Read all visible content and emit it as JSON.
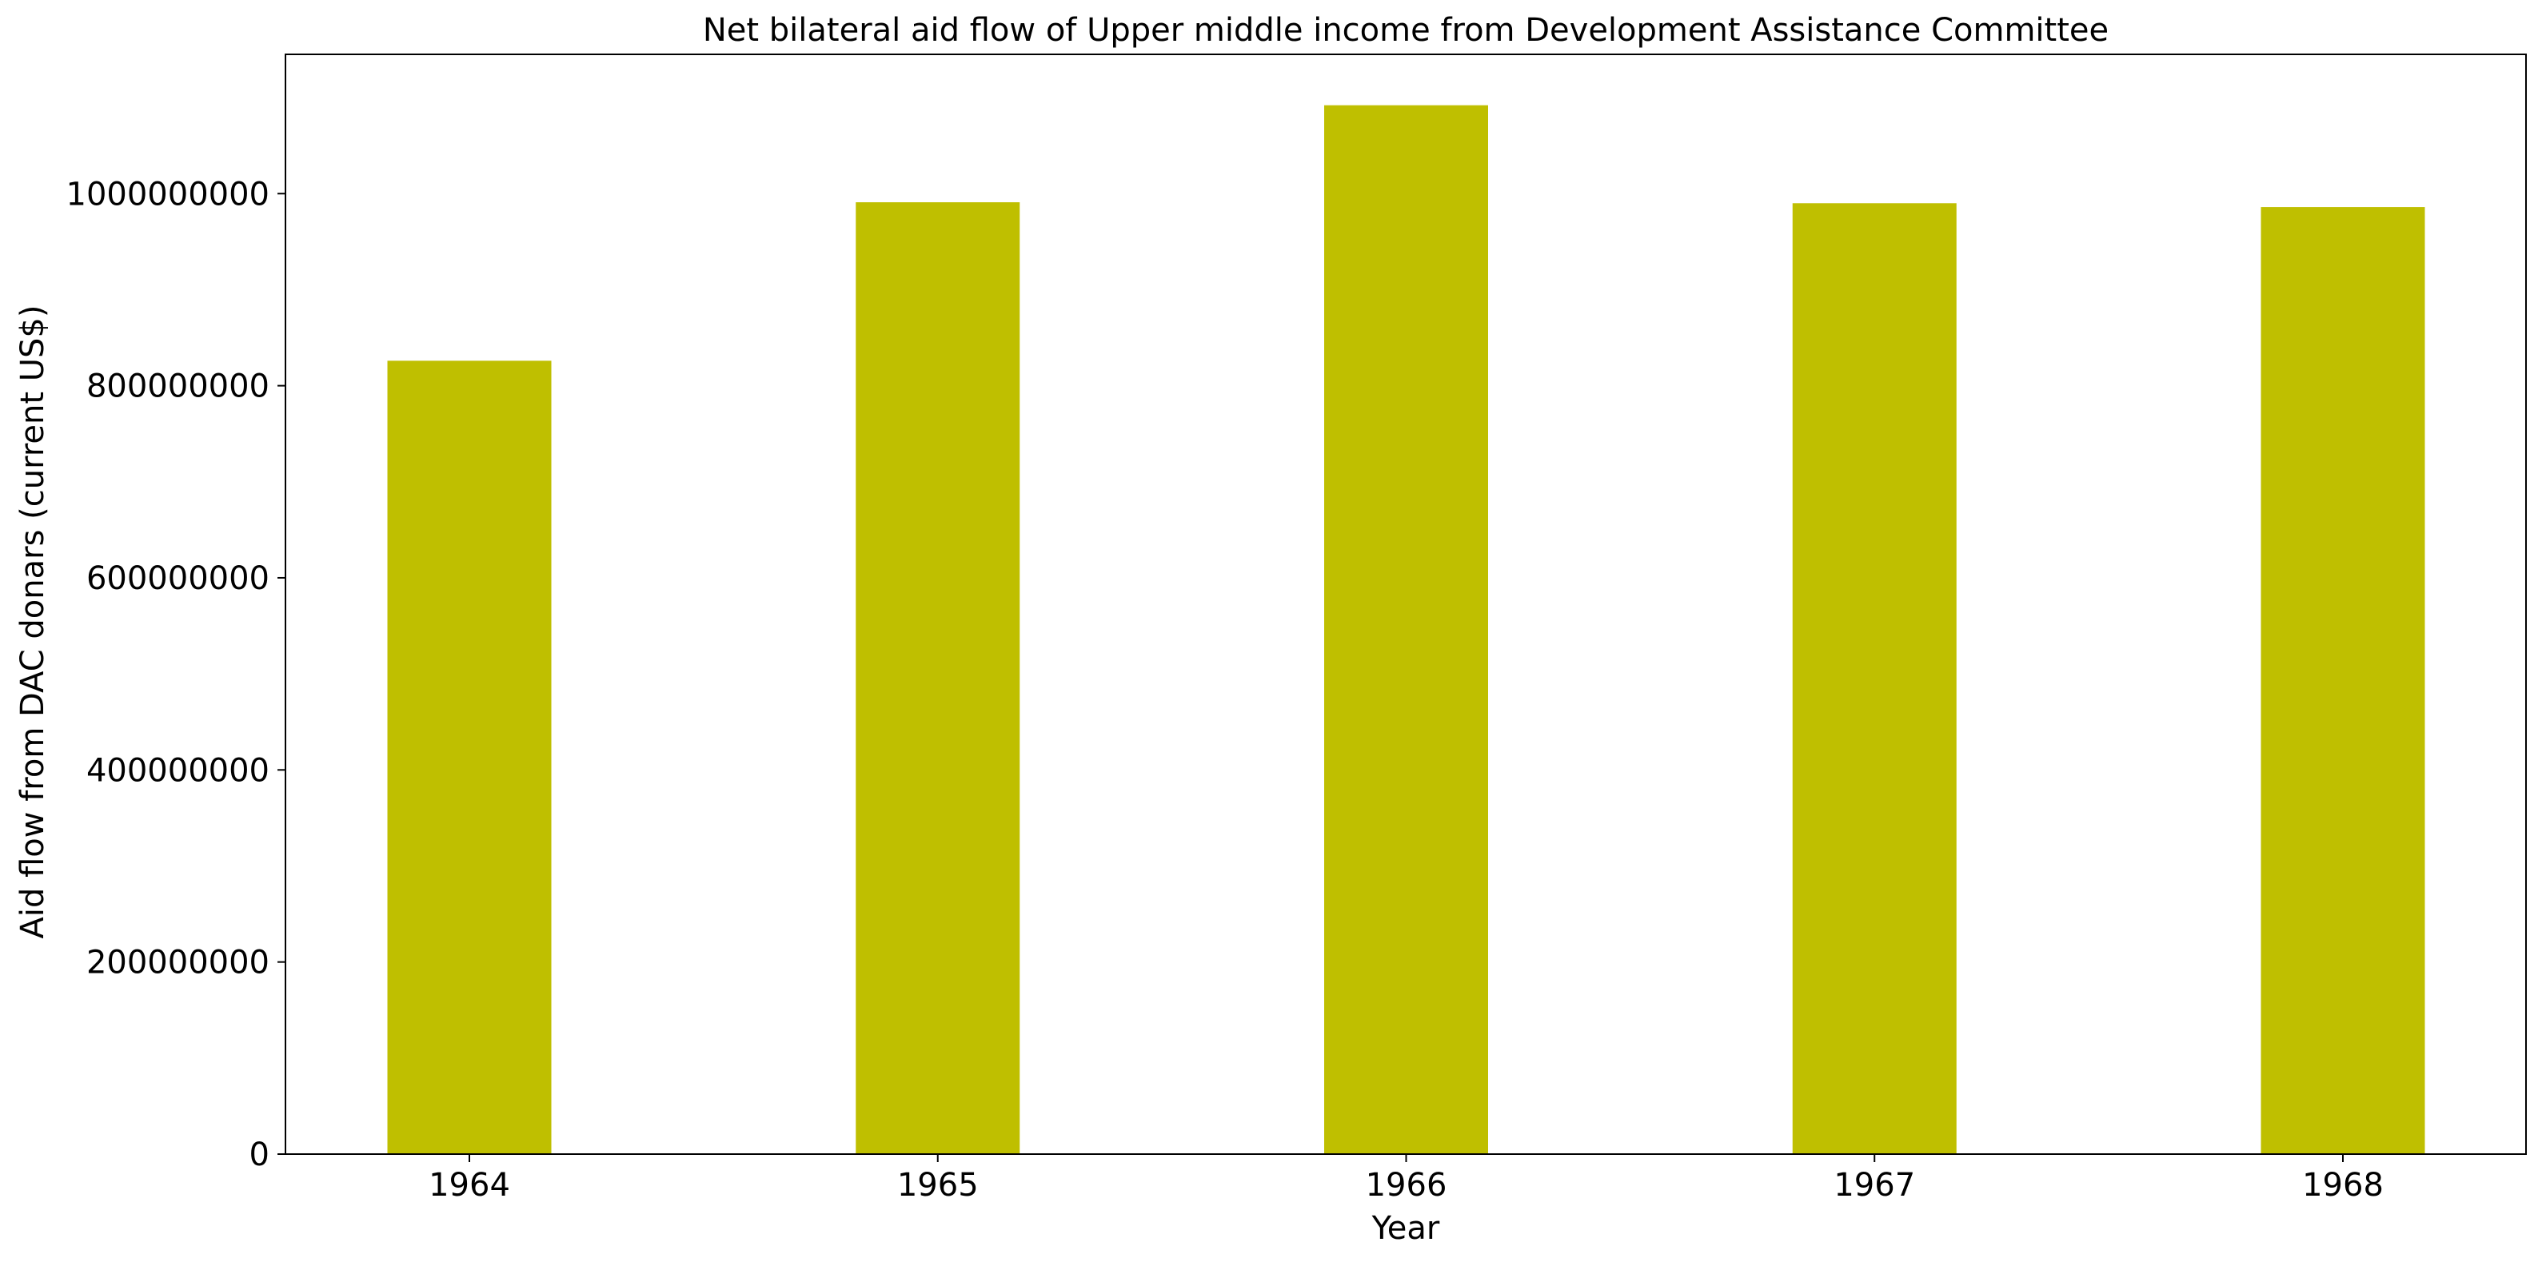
{
  "chart_data": {
    "type": "bar",
    "title": "Net bilateral aid flow of Upper middle income from Development Assistance Committee",
    "xlabel": "Year",
    "ylabel": "Aid flow from DAC donars (current US$)",
    "categories": [
      "1964",
      "1965",
      "1966",
      "1967",
      "1968"
    ],
    "values": [
      826000000,
      991000000,
      1092000000,
      990000000,
      986000000
    ],
    "ylim": [
      0,
      1145000000
    ],
    "yticks": [
      0,
      200000000,
      400000000,
      600000000,
      800000000,
      1000000000
    ],
    "ytick_labels": [
      "0",
      "200000000",
      "400000000",
      "600000000",
      "800000000",
      "1000000000"
    ],
    "bar_color": "#bfbf00",
    "grid": false,
    "legend": false
  }
}
